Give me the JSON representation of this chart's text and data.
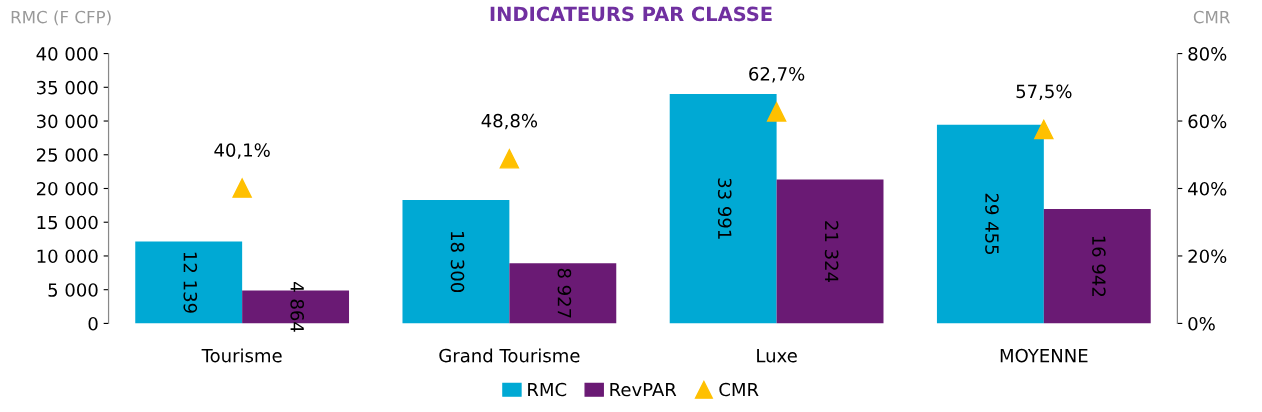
{
  "chart_data": {
    "type": "bar",
    "title": "INDICATEURS PAR CLASSE",
    "ylabel": "RMC (F CFP)",
    "y2label": "CMR",
    "categories": [
      "Tourisme",
      "Grand Tourisme",
      "Luxe",
      "MOYENNE"
    ],
    "series": [
      {
        "name": "RMC",
        "color": "#00a9d4",
        "values": [
          12139,
          18300,
          33991,
          29455
        ],
        "value_labels": [
          "12 139",
          "18 300",
          "33 991",
          "29 455"
        ]
      },
      {
        "name": "RevPAR",
        "color": "#6a1a74",
        "values": [
          4864,
          8927,
          21324,
          16942
        ],
        "value_labels": [
          "4 864",
          "8 927",
          "21 324",
          "16 942"
        ]
      },
      {
        "name": "CMR",
        "type": "scatter",
        "axis": "y2",
        "marker": "triangle",
        "color": "#ffc000",
        "values": [
          40.1,
          48.8,
          62.7,
          57.5
        ],
        "value_labels": [
          "40,1%",
          "48,8%",
          "62,7%",
          "57,5%"
        ]
      }
    ],
    "ylim": [
      0,
      40000
    ],
    "yticks": [
      {
        "value": 0,
        "label": "0"
      },
      {
        "value": 5000,
        "label": "5 000"
      },
      {
        "value": 10000,
        "label": "10 000"
      },
      {
        "value": 15000,
        "label": "15 000"
      },
      {
        "value": 20000,
        "label": "20 000"
      },
      {
        "value": 25000,
        "label": "25 000"
      },
      {
        "value": 30000,
        "label": "30 000"
      },
      {
        "value": 35000,
        "label": "35 000"
      },
      {
        "value": 40000,
        "label": "40 000"
      }
    ],
    "y2lim": [
      0,
      80
    ],
    "y2ticks": [
      {
        "value": 0,
        "label": "0%"
      },
      {
        "value": 20,
        "label": "20%"
      },
      {
        "value": 40,
        "label": "40%"
      },
      {
        "value": 60,
        "label": "60%"
      },
      {
        "value": 80,
        "label": "80%"
      }
    ],
    "grid": false,
    "legend": "bottom"
  }
}
